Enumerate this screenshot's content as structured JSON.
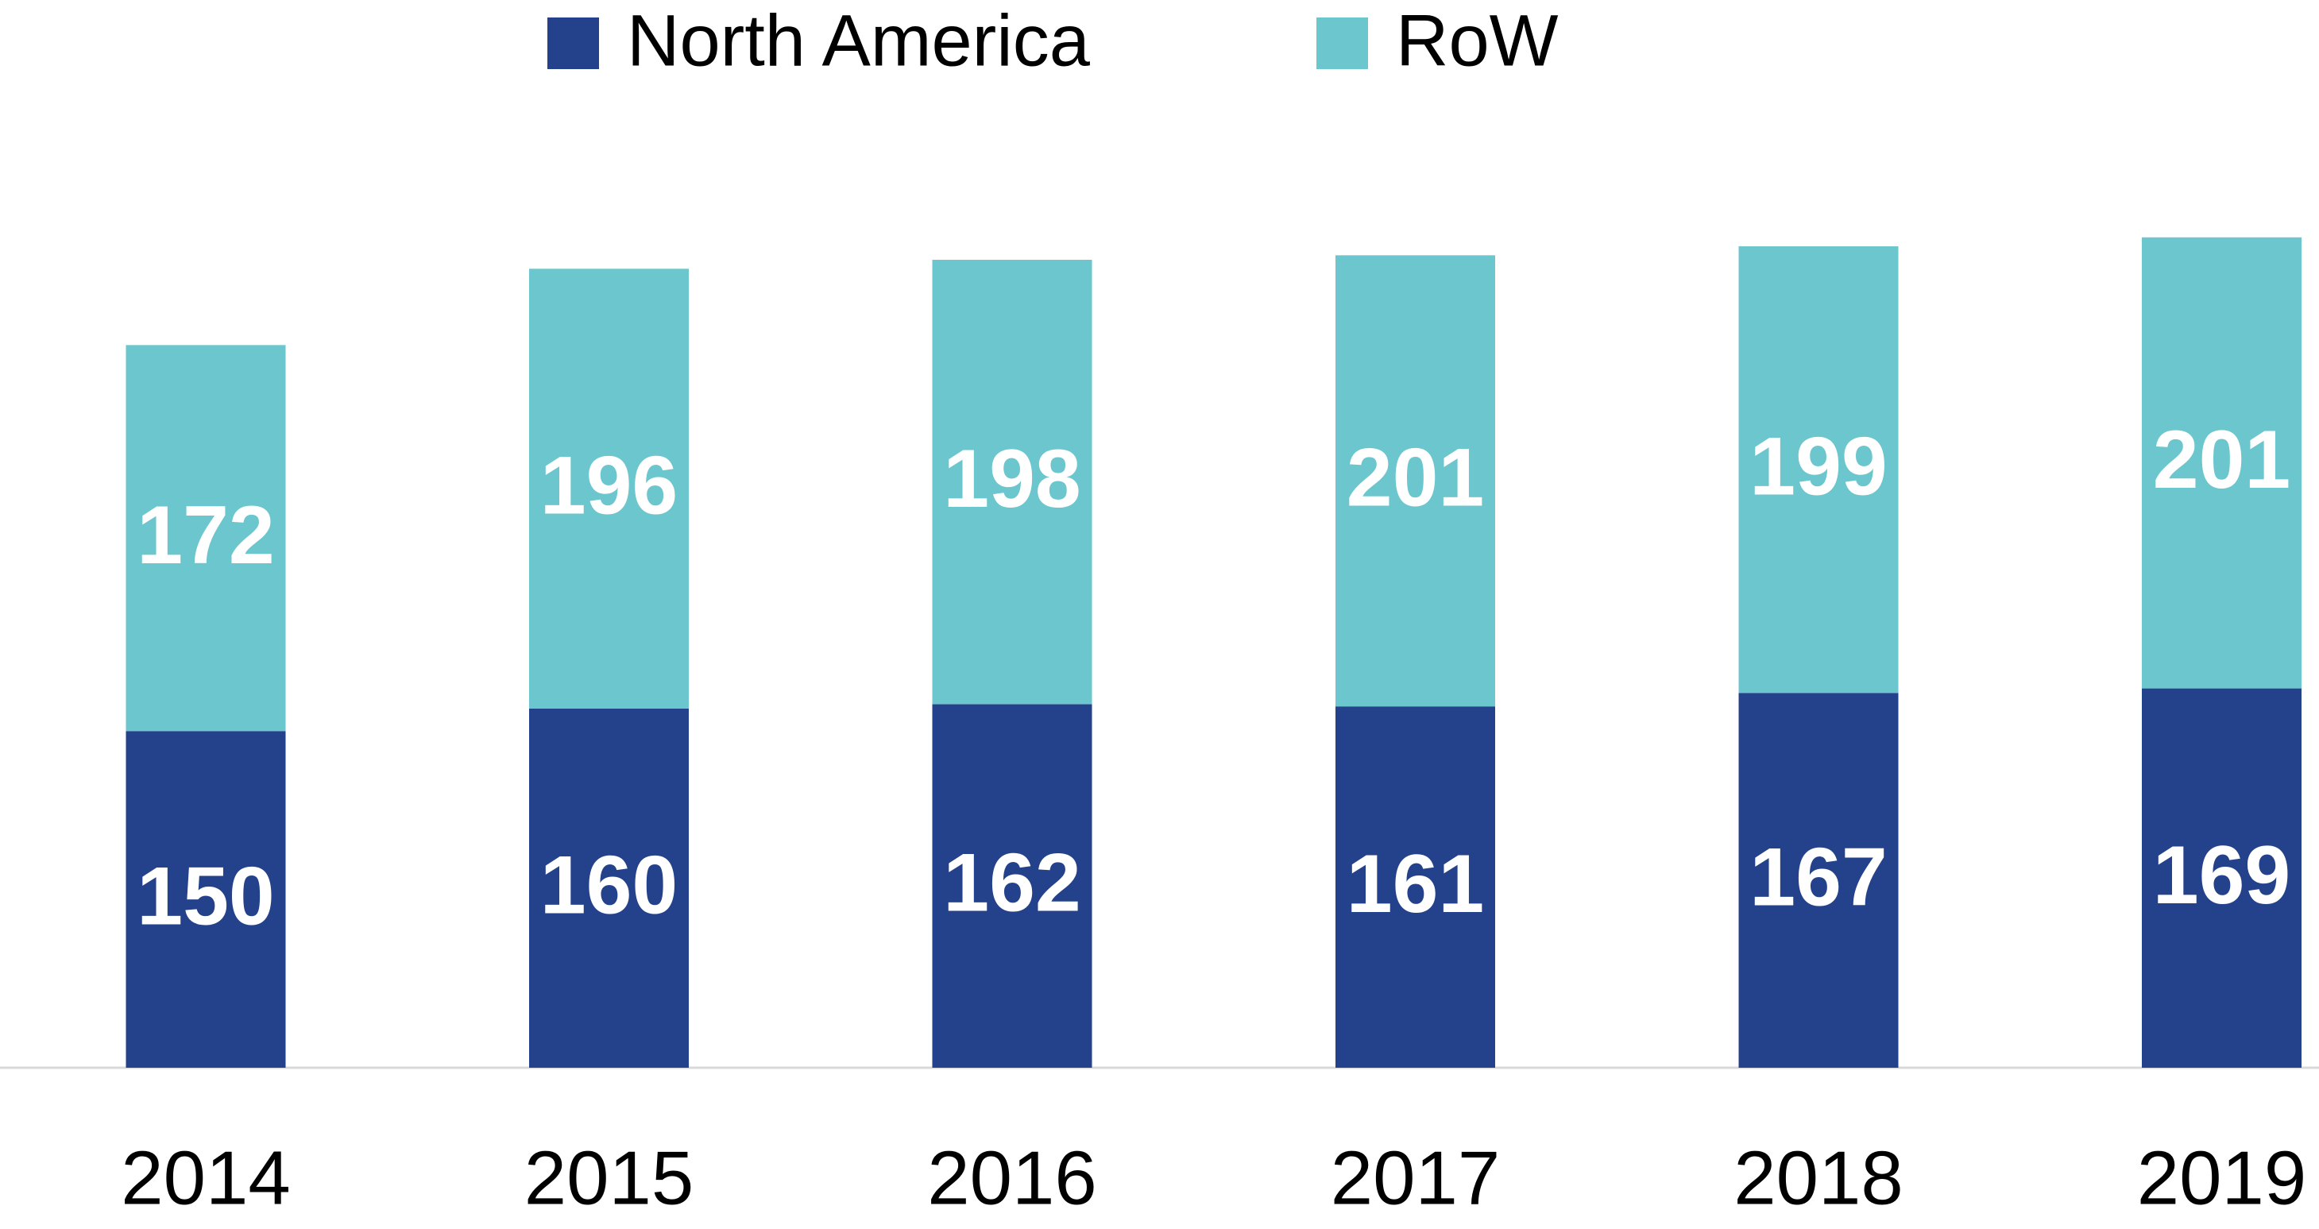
{
  "chart_data": {
    "type": "stacked_bar",
    "categories": [
      "2014",
      "2015",
      "2016",
      "2017",
      "2018",
      "2019"
    ],
    "series": [
      {
        "name": "North America",
        "color": "#24418c",
        "values": [
          150,
          160,
          162,
          161,
          167,
          169
        ]
      },
      {
        "name": "RoW",
        "color": "#6bc6cd",
        "values": [
          172,
          196,
          198,
          201,
          199,
          201
        ]
      }
    ],
    "ylim": [
      0,
      400
    ],
    "legend": "top"
  }
}
